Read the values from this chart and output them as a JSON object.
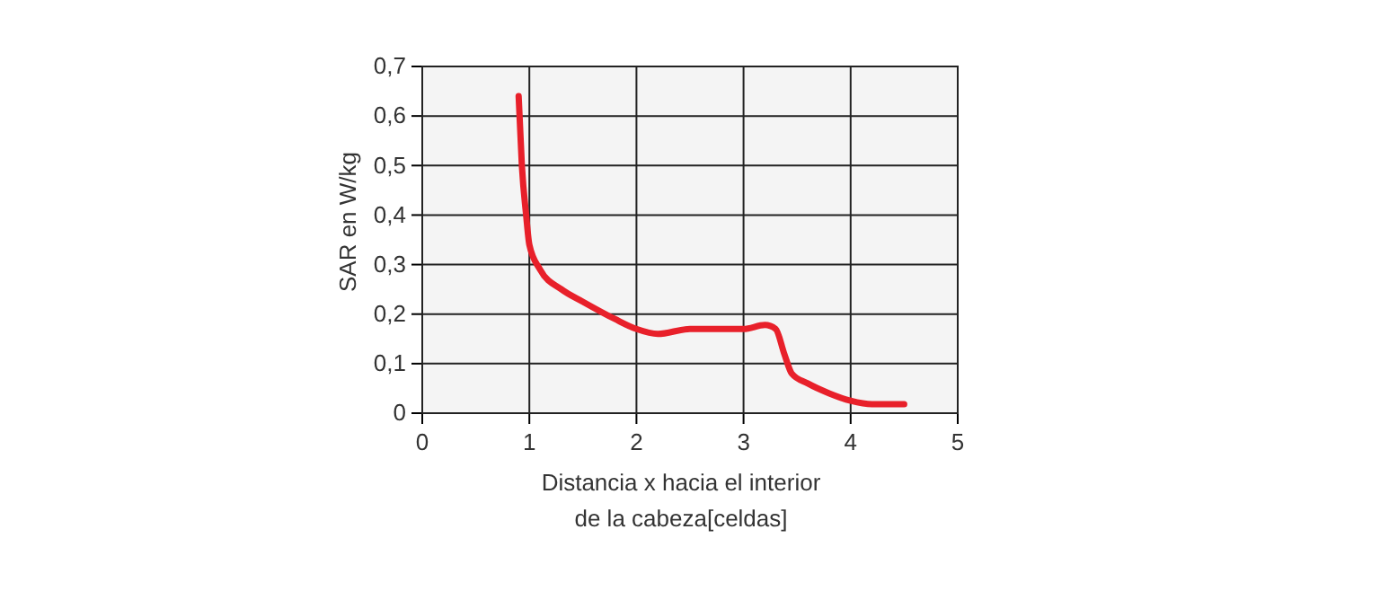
{
  "chart_data": {
    "type": "line",
    "xlabel": "Distancia x hacia el interior\nde la cabeza[celdas]",
    "ylabel": "SAR en W/kg",
    "x": [
      0.9,
      0.93,
      0.97,
      1.0,
      1.1,
      1.3,
      1.5,
      1.8,
      2.0,
      2.2,
      2.5,
      2.8,
      3.0,
      3.2,
      3.3,
      3.38,
      3.45,
      3.6,
      3.8,
      4.0,
      4.2,
      4.5
    ],
    "series": [
      {
        "color": "#e8202a",
        "values": [
          0.64,
          0.5,
          0.4,
          0.34,
          0.29,
          0.25,
          0.225,
          0.19,
          0.17,
          0.16,
          0.17,
          0.17,
          0.17,
          0.178,
          0.17,
          0.12,
          0.08,
          0.06,
          0.04,
          0.025,
          0.018,
          0.018
        ]
      }
    ],
    "xlim": [
      0,
      5
    ],
    "xticks": [
      0,
      1,
      2,
      3,
      4,
      5
    ],
    "ylim": [
      0,
      0.7
    ],
    "yticks": [
      {
        "value": 0,
        "label": "0"
      },
      {
        "value": 0.1,
        "label": "0,1"
      },
      {
        "value": 0.2,
        "label": "0,2"
      },
      {
        "value": 0.3,
        "label": "0,3"
      },
      {
        "value": 0.4,
        "label": "0,4"
      },
      {
        "value": 0.5,
        "label": "0,5"
      },
      {
        "value": 0.6,
        "label": "0,6"
      },
      {
        "value": 0.7,
        "label": "0,7"
      }
    ],
    "grid": true,
    "marker": "none",
    "line_style": "solid"
  }
}
